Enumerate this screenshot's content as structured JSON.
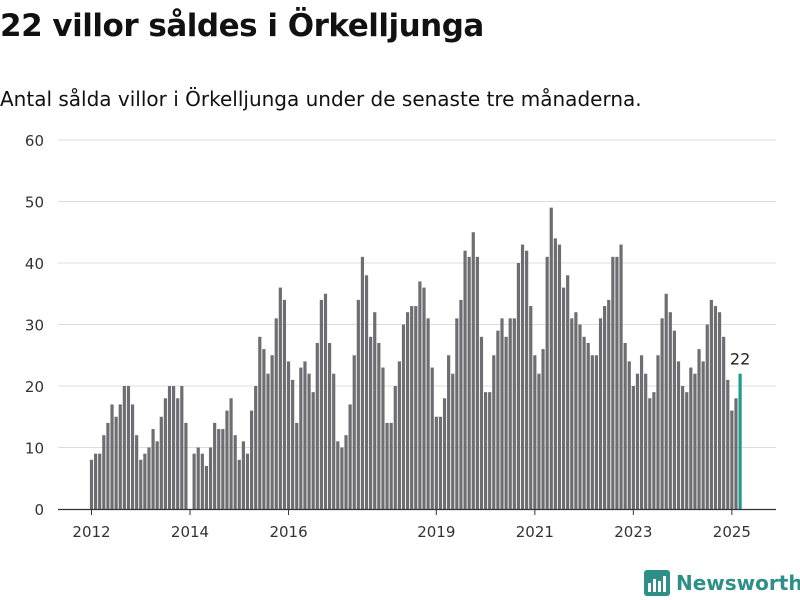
{
  "header": {
    "title": "22 villor såldes i Örkelljunga",
    "subtitle": "Antal sålda villor i Örkelljunga under de senaste tre månaderna."
  },
  "branding": {
    "name": "Newsworthy",
    "icon": "newsworthy-logo-icon"
  },
  "colors": {
    "bar": "#6e6d72",
    "highlight": "#1a9c8f",
    "grid": "#dddddd",
    "brand": "#2d8f88"
  },
  "chart_data": {
    "type": "bar",
    "ylim": [
      0,
      60
    ],
    "yticks": [
      0,
      10,
      20,
      30,
      40,
      50,
      60
    ],
    "xticks": [
      "2012",
      "2014",
      "2016",
      "2019",
      "2021",
      "2023",
      "2025"
    ],
    "grid": true,
    "highlight_label": "22",
    "start_month": "2012-01",
    "values": [
      8,
      9,
      9,
      12,
      14,
      17,
      15,
      17,
      20,
      20,
      17,
      12,
      8,
      9,
      10,
      13,
      11,
      15,
      18,
      20,
      20,
      18,
      20,
      14,
      null,
      9,
      10,
      9,
      7,
      10,
      14,
      13,
      13,
      16,
      18,
      12,
      8,
      11,
      9,
      16,
      20,
      28,
      26,
      22,
      25,
      31,
      36,
      34,
      24,
      21,
      14,
      23,
      24,
      22,
      19,
      27,
      34,
      35,
      27,
      22,
      11,
      10,
      12,
      17,
      25,
      34,
      41,
      38,
      28,
      32,
      27,
      23,
      14,
      14,
      20,
      24,
      30,
      32,
      33,
      33,
      37,
      36,
      31,
      23,
      15,
      15,
      18,
      25,
      22,
      31,
      34,
      42,
      41,
      45,
      41,
      28,
      19,
      19,
      25,
      29,
      31,
      28,
      31,
      31,
      40,
      43,
      42,
      33,
      25,
      22,
      26,
      41,
      49,
      44,
      43,
      36,
      38,
      31,
      32,
      30,
      28,
      27,
      25,
      25,
      31,
      33,
      34,
      41,
      41,
      43,
      27,
      24,
      20,
      22,
      25,
      22,
      18,
      19,
      25,
      31,
      35,
      32,
      29,
      24,
      20,
      19,
      23,
      22,
      26,
      24,
      30,
      34,
      33,
      32,
      28,
      21,
      16,
      18,
      22
    ]
  }
}
